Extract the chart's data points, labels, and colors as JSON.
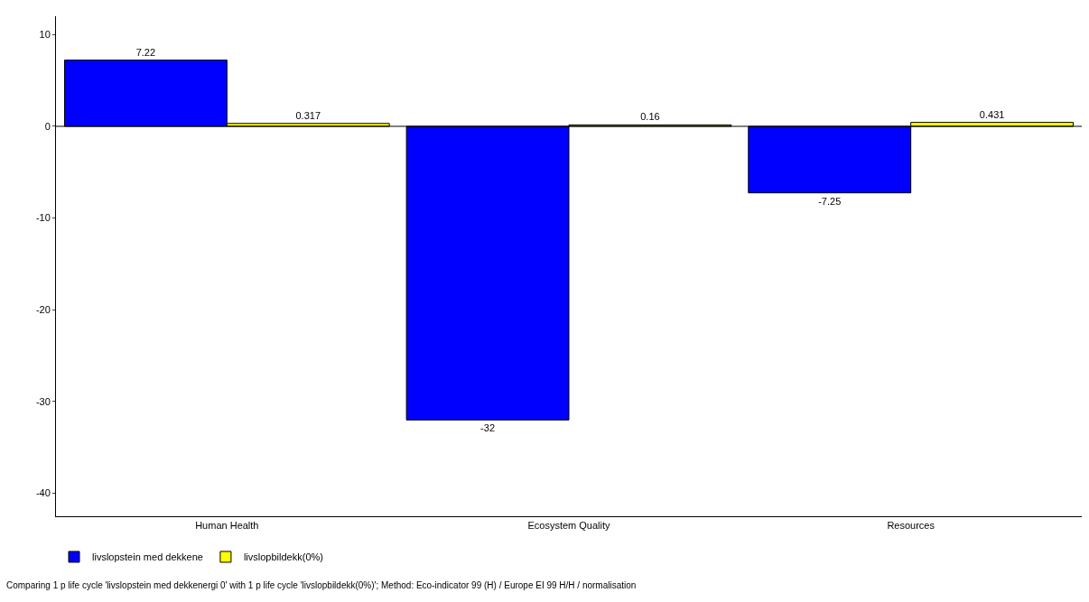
{
  "chart_data": {
    "type": "bar",
    "categories": [
      "Human Health",
      "Ecosystem Quality",
      "Resources"
    ],
    "series": [
      {
        "name": "livslopstein med dekkene",
        "color": "#0000ff",
        "values": [
          7.22,
          -32,
          -7.25
        ]
      },
      {
        "name": "livslopbildekk(0%)",
        "color": "#ffff00",
        "values": [
          0.317,
          0.16,
          0.431
        ]
      }
    ],
    "ylim": [
      -42.5,
      12
    ],
    "yticks": [
      10,
      0,
      -10,
      -20,
      -30,
      -40
    ],
    "ref_lines": [
      {
        "axis": "y",
        "value": 0,
        "color": "#000000"
      }
    ],
    "data_labels": true,
    "grid": false,
    "legend": "bottom left",
    "annotations": [
      "Comparing 1 p life cycle 'livslopstein med dekkenergi 0' with 1 p life cycle 'livslopbildekk(0%)'; Method: Eco-indicator 99 (H) / Europe EI 99 H/H / normalisation"
    ]
  }
}
